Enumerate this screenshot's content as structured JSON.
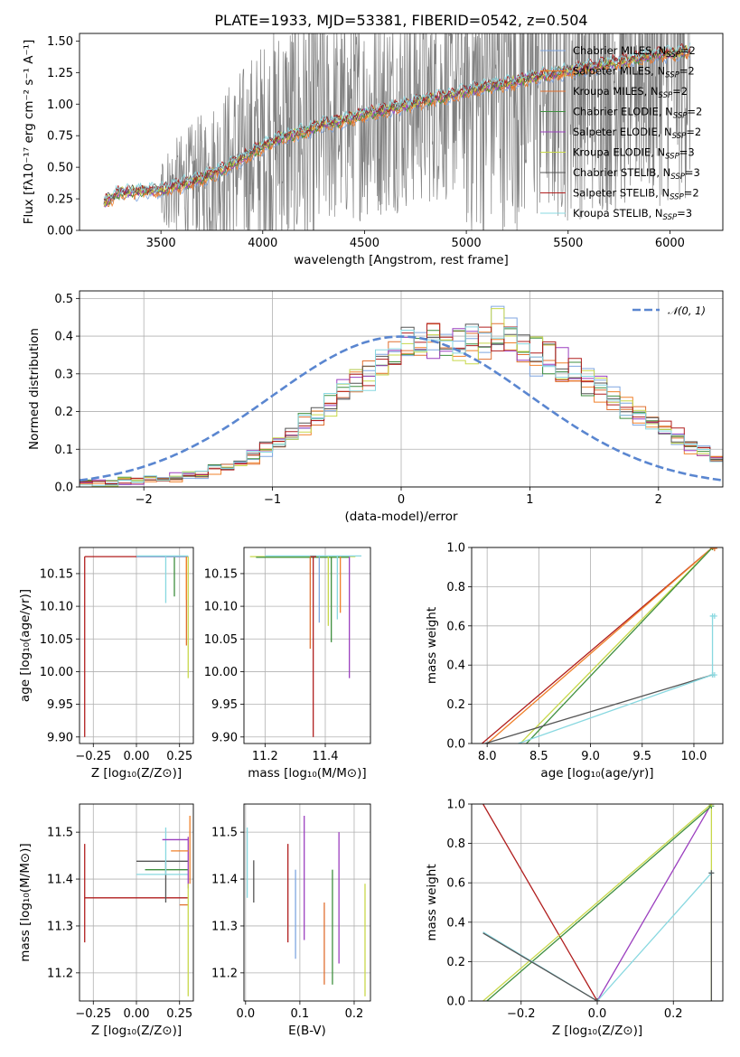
{
  "figure": {
    "title": "PLATE=1933, MJD=53381, FIBERID=0542, z=0.504"
  },
  "colors": {
    "gray": "#808080",
    "normal_curve": "#5a86d0",
    "grid": "#b0b0b0",
    "series": [
      "#7fa6e0",
      "#f0802a",
      "#e07030",
      "#3f8f3f",
      "#9b3fbf",
      "#c8d84a",
      "#555555",
      "#b01e1e",
      "#88d8e0"
    ]
  },
  "chart_data": [
    {
      "id": "spectrum",
      "type": "line",
      "title": "PLATE=1933, MJD=53381, FIBERID=0542, z=0.504",
      "xlabel": "wavelength [Angstrom, rest frame]",
      "ylabel": "Flux [fλ10⁻¹⁷ erg cm⁻² s⁻¹ A⁻¹]",
      "xlim": [
        3100,
        6260
      ],
      "ylim": [
        0.0,
        1.56
      ],
      "xticks": [
        3500,
        4000,
        4500,
        5000,
        5500,
        6000
      ],
      "yticks": [
        0.0,
        0.25,
        0.5,
        0.75,
        1.0,
        1.25,
        1.5
      ],
      "grid": false,
      "legend_position": "top-right",
      "data_range": [
        3220,
        6100
      ],
      "continuum_points": {
        "x": [
          3220,
          3300,
          3400,
          3500,
          3600,
          3700,
          3800,
          3900,
          4000,
          4100,
          4200,
          4300,
          4400,
          4500,
          4600,
          4700,
          4800,
          4900,
          5000,
          5100,
          5200,
          5300,
          5400,
          5500,
          5600,
          5700,
          5800,
          5900,
          6000,
          6100
        ],
        "y": [
          0.22,
          0.3,
          0.31,
          0.32,
          0.36,
          0.41,
          0.48,
          0.57,
          0.66,
          0.74,
          0.78,
          0.84,
          0.87,
          0.92,
          0.95,
          0.99,
          1.03,
          1.06,
          1.1,
          1.14,
          1.16,
          1.2,
          1.23,
          1.26,
          1.29,
          1.32,
          1.35,
          1.38,
          1.4,
          1.42
        ]
      },
      "series": [
        {
          "name": "Chabrier MILES, N_SSP=2"
        },
        {
          "name": "Salpeter MILES, N_SSP=2"
        },
        {
          "name": "Kroupa MILES, N_SSP=2"
        },
        {
          "name": "Chabrier ELODIE, N_SSP=2"
        },
        {
          "name": "Salpeter ELODIE, N_SSP=2"
        },
        {
          "name": "Kroupa ELODIE, N_SSP=3"
        },
        {
          "name": "Chabrier STELIB, N_SSP=3"
        },
        {
          "name": "Salpeter STELIB, N_SSP=2"
        },
        {
          "name": "Kroupa STELIB, N_SSP=3"
        }
      ]
    },
    {
      "id": "residuals",
      "type": "bar",
      "xlabel": "(data-model)/error",
      "ylabel": "Normed distribution",
      "xlim": [
        -2.5,
        2.5
      ],
      "ylim": [
        0.0,
        0.52
      ],
      "xticks": [
        -2,
        -1,
        0,
        1,
        2
      ],
      "yticks": [
        0.0,
        0.1,
        0.2,
        0.3,
        0.4,
        0.5
      ],
      "grid": true,
      "legend_position": "top-right",
      "reference_curve": {
        "name": "𝒩(0, 1)",
        "mean": 0,
        "sigma": 1
      },
      "bin_edges_start": -2.5,
      "bin_width": 0.1,
      "histogram_base": [
        0.01,
        0.01,
        0.012,
        0.014,
        0.016,
        0.018,
        0.02,
        0.025,
        0.03,
        0.035,
        0.045,
        0.055,
        0.065,
        0.08,
        0.1,
        0.12,
        0.14,
        0.165,
        0.19,
        0.215,
        0.245,
        0.275,
        0.305,
        0.335,
        0.36,
        0.38,
        0.39,
        0.4,
        0.4,
        0.39,
        0.38,
        0.4,
        0.42,
        0.39,
        0.37,
        0.35,
        0.34,
        0.32,
        0.3,
        0.28,
        0.26,
        0.23,
        0.21,
        0.19,
        0.17,
        0.15,
        0.13,
        0.11,
        0.09,
        0.075,
        0.06
      ]
    },
    {
      "id": "age-vs-Z",
      "type": "line",
      "xlabel": "Z [log₁₀(Z/Z⊙)]",
      "ylabel": "age  [log₁₀(age/yr)]",
      "xlim": [
        -0.33,
        0.33
      ],
      "ylim": [
        9.89,
        10.19
      ],
      "xticks": [
        -0.25,
        0.0,
        0.25
      ],
      "yticks": [
        9.9,
        9.95,
        10.0,
        10.05,
        10.1,
        10.15
      ],
      "grid": true,
      "segments": [
        {
          "series": 7,
          "x": [
            -0.3,
            0.3
          ],
          "y": [
            10.176,
            10.176
          ]
        },
        {
          "series": 7,
          "x": [
            -0.3,
            -0.3
          ],
          "y": [
            10.176,
            9.9
          ]
        },
        {
          "series": 0,
          "x": [
            0.0,
            0.3
          ],
          "y": [
            10.176,
            10.176
          ]
        },
        {
          "series": 8,
          "x": [
            0.0,
            0.3
          ],
          "y": [
            10.177,
            10.177
          ]
        },
        {
          "series": 8,
          "x": [
            0.17,
            0.17
          ],
          "y": [
            10.177,
            10.105
          ]
        },
        {
          "series": 3,
          "x": [
            0.22,
            0.22
          ],
          "y": [
            10.175,
            10.115
          ]
        },
        {
          "series": 5,
          "x": [
            0.3,
            0.3
          ],
          "y": [
            10.176,
            9.99
          ]
        },
        {
          "series": 2,
          "x": [
            0.29,
            0.29
          ],
          "y": [
            10.176,
            10.04
          ]
        },
        {
          "series": 1,
          "x": [
            0.29,
            0.29
          ],
          "y": [
            10.176,
            10.11
          ]
        }
      ]
    },
    {
      "id": "age-vs-mass",
      "type": "line",
      "xlabel": "mass [log₁₀(M/M⊙)]",
      "ylabel": "",
      "xlim": [
        11.13,
        11.55
      ],
      "ylim": [
        9.89,
        10.19
      ],
      "xticks": [
        11.2,
        11.4
      ],
      "yticks": [
        9.9,
        9.95,
        10.0,
        10.05,
        10.1,
        10.15
      ],
      "grid": true,
      "segments": [
        {
          "series": 5,
          "x": [
            11.15,
            11.5
          ],
          "y": [
            10.176,
            10.176
          ]
        },
        {
          "series": 3,
          "x": [
            11.17,
            11.48
          ],
          "y": [
            10.175,
            10.175
          ]
        },
        {
          "series": 8,
          "x": [
            11.2,
            11.52
          ],
          "y": [
            10.177,
            10.177
          ]
        },
        {
          "series": 7,
          "x": [
            11.35,
            11.37
          ],
          "y": [
            10.176,
            10.176
          ]
        },
        {
          "series": 7,
          "x": [
            11.36,
            11.36
          ],
          "y": [
            10.176,
            9.9
          ]
        },
        {
          "series": 2,
          "x": [
            11.35,
            11.35
          ],
          "y": [
            10.176,
            10.035
          ]
        },
        {
          "series": 0,
          "x": [
            11.38,
            11.38
          ],
          "y": [
            10.176,
            10.075
          ]
        },
        {
          "series": 3,
          "x": [
            11.42,
            11.42
          ],
          "y": [
            10.175,
            10.045
          ]
        },
        {
          "series": 4,
          "x": [
            11.48,
            11.48
          ],
          "y": [
            10.176,
            9.99
          ]
        },
        {
          "series": 8,
          "x": [
            11.44,
            11.44
          ],
          "y": [
            10.177,
            10.08
          ]
        },
        {
          "series": 1,
          "x": [
            11.45,
            11.45
          ],
          "y": [
            10.176,
            10.09
          ]
        },
        {
          "series": 5,
          "x": [
            11.41,
            11.41
          ],
          "y": [
            10.176,
            10.07
          ]
        }
      ]
    },
    {
      "id": "massweight-vs-age",
      "type": "line",
      "xlabel": "age  [log₁₀(age/yr)]",
      "ylabel": "mass weight",
      "xlim": [
        7.85,
        10.28
      ],
      "ylim": [
        0.0,
        1.0
      ],
      "xticks": [
        8.0,
        8.5,
        9.0,
        9.5,
        10.0
      ],
      "yticks": [
        0.0,
        0.2,
        0.4,
        0.6,
        0.8,
        1.0
      ],
      "grid": true,
      "segments": [
        {
          "series": 7,
          "x": [
            7.95,
            10.18
          ],
          "y": [
            0.0,
            1.0
          ]
        },
        {
          "series": 1,
          "x": [
            8.0,
            10.18
          ],
          "y": [
            0.0,
            1.0
          ]
        },
        {
          "series": 5,
          "x": [
            8.32,
            10.18
          ],
          "y": [
            0.0,
            1.0
          ]
        },
        {
          "series": 3,
          "x": [
            8.38,
            10.18
          ],
          "y": [
            0.0,
            1.0
          ]
        },
        {
          "series": 6,
          "x": [
            7.98,
            10.18
          ],
          "y": [
            0.0,
            0.35
          ]
        },
        {
          "series": 8,
          "x": [
            8.3,
            10.18
          ],
          "y": [
            0.0,
            0.35
          ]
        },
        {
          "series": 8,
          "x": [
            10.18,
            10.18
          ],
          "y": [
            0.35,
            0.65
          ]
        },
        {
          "series": 8,
          "x": [
            10.16,
            10.2
          ],
          "y": [
            0.35,
            0.35
          ]
        },
        {
          "series": 8,
          "x": [
            10.16,
            10.2
          ],
          "y": [
            0.65,
            0.65
          ]
        },
        {
          "series": 2,
          "x": [
            10.16,
            10.2
          ],
          "y": [
            0.995,
            0.995
          ]
        }
      ]
    },
    {
      "id": "mass-vs-Z",
      "type": "line",
      "xlabel": "Z [log₁₀(Z/Z⊙)]",
      "ylabel": "mass [log₁₀(M/M⊙)]",
      "xlim": [
        -0.33,
        0.33
      ],
      "ylim": [
        11.14,
        11.56
      ],
      "xticks": [
        -0.25,
        0.0,
        0.25
      ],
      "yticks": [
        11.2,
        11.3,
        11.4,
        11.5
      ],
      "grid": true,
      "segments": [
        {
          "series": 7,
          "x": [
            -0.3,
            0.3
          ],
          "y": [
            11.36,
            11.36
          ]
        },
        {
          "series": 7,
          "x": [
            -0.3,
            -0.3
          ],
          "y": [
            11.265,
            11.475
          ]
        },
        {
          "series": 6,
          "x": [
            0.0,
            0.3
          ],
          "y": [
            11.438,
            11.438
          ]
        },
        {
          "series": 6,
          "x": [
            0.17,
            0.17
          ],
          "y": [
            11.35,
            11.44
          ]
        },
        {
          "series": 3,
          "x": [
            0.05,
            0.3
          ],
          "y": [
            11.42,
            11.42
          ]
        },
        {
          "series": 8,
          "x": [
            0.0,
            0.3
          ],
          "y": [
            11.41,
            11.41
          ]
        },
        {
          "series": 8,
          "x": [
            0.17,
            0.17
          ],
          "y": [
            11.41,
            11.51
          ]
        },
        {
          "series": 4,
          "x": [
            0.15,
            0.3
          ],
          "y": [
            11.484,
            11.484
          ]
        },
        {
          "series": 4,
          "x": [
            0.3,
            0.3
          ],
          "y": [
            11.38,
            11.49
          ]
        },
        {
          "series": 1,
          "x": [
            0.2,
            0.3
          ],
          "y": [
            11.46,
            11.46
          ]
        },
        {
          "series": 2,
          "x": [
            0.25,
            0.3
          ],
          "y": [
            11.345,
            11.345
          ]
        },
        {
          "series": 1,
          "x": [
            0.31,
            0.31
          ],
          "y": [
            11.39,
            11.535
          ]
        },
        {
          "series": 5,
          "x": [
            0.3,
            0.3
          ],
          "y": [
            11.15,
            11.39
          ]
        }
      ]
    },
    {
      "id": "mass-vs-ebv",
      "type": "line",
      "xlabel": "E(B-V)",
      "ylabel": "",
      "xlim": [
        -0.003,
        0.23
      ],
      "ylim": [
        11.14,
        11.56
      ],
      "xticks": [
        0.0,
        0.1,
        0.2
      ],
      "yticks": [
        11.2,
        11.3,
        11.4,
        11.5
      ],
      "grid": true,
      "segments": [
        {
          "series": 8,
          "x": [
            0.003,
            0.003
          ],
          "y": [
            11.36,
            11.51
          ]
        },
        {
          "series": 6,
          "x": [
            0.015,
            0.015
          ],
          "y": [
            11.35,
            11.44
          ]
        },
        {
          "series": 7,
          "x": [
            0.078,
            0.078
          ],
          "y": [
            11.265,
            11.475
          ]
        },
        {
          "series": 0,
          "x": [
            0.092,
            0.092
          ],
          "y": [
            11.23,
            11.42
          ]
        },
        {
          "series": 4,
          "x": [
            0.108,
            0.108
          ],
          "y": [
            11.27,
            11.535
          ]
        },
        {
          "series": 2,
          "x": [
            0.145,
            0.145
          ],
          "y": [
            11.175,
            11.35
          ]
        },
        {
          "series": 3,
          "x": [
            0.16,
            0.16
          ],
          "y": [
            11.175,
            11.42
          ]
        },
        {
          "series": 4,
          "x": [
            0.172,
            0.172
          ],
          "y": [
            11.22,
            11.5
          ]
        },
        {
          "series": 5,
          "x": [
            0.22,
            0.22
          ],
          "y": [
            11.15,
            11.39
          ]
        }
      ]
    },
    {
      "id": "massweight-vs-Z",
      "type": "line",
      "xlabel": "Z [log₁₀(Z/Z⊙)]",
      "ylabel": "mass weight",
      "xlim": [
        -0.33,
        0.33
      ],
      "ylim": [
        0.0,
        1.0
      ],
      "xticks": [
        -0.2,
        0.0,
        0.2
      ],
      "yticks": [
        0.0,
        0.2,
        0.4,
        0.6,
        0.8,
        1.0
      ],
      "grid": true,
      "segments": [
        {
          "series": 7,
          "x": [
            -0.3,
            0.0
          ],
          "y": [
            1.0,
            0.0
          ]
        },
        {
          "series": 4,
          "x": [
            0.0,
            0.3
          ],
          "y": [
            0.0,
            1.0
          ]
        },
        {
          "series": 5,
          "x": [
            -0.3,
            0.3
          ],
          "y": [
            0.0,
            1.0
          ]
        },
        {
          "series": 3,
          "x": [
            -0.29,
            0.3
          ],
          "y": [
            0.0,
            0.99
          ]
        },
        {
          "series": 8,
          "x": [
            -0.3,
            0.0
          ],
          "y": [
            0.35,
            0.0
          ]
        },
        {
          "series": 8,
          "x": [
            0.0,
            0.3
          ],
          "y": [
            0.0,
            0.65
          ]
        },
        {
          "series": 6,
          "x": [
            -0.3,
            0.0
          ],
          "y": [
            0.345,
            0.0
          ]
        },
        {
          "series": 5,
          "x": [
            0.3,
            0.3
          ],
          "y": [
            0.0,
            1.0
          ]
        },
        {
          "series": 6,
          "x": [
            0.3,
            0.3
          ],
          "y": [
            0.0,
            0.65
          ]
        }
      ]
    }
  ]
}
